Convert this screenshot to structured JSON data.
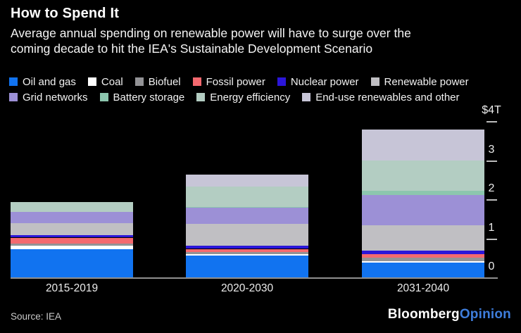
{
  "header": {
    "title": "How to Spend It",
    "subtitle": "Average annual spending on renewable power will have to surge over the\ncoming decade to hit the IEA's Sustainable Development Scenario"
  },
  "chart_data": {
    "type": "bar",
    "variant": "stacked",
    "title": "How to Spend It",
    "unit": "trillion USD",
    "categories": [
      "2015-2019",
      "2020-2030",
      "2031-2040"
    ],
    "series": [
      {
        "name": "Oil and gas",
        "color": "#1173f0",
        "values": [
          0.72,
          0.56,
          0.38
        ]
      },
      {
        "name": "Coal",
        "color": "#ffffff",
        "values": [
          0.1,
          0.04,
          0.04
        ]
      },
      {
        "name": "Biofuel",
        "color": "#939396",
        "values": [
          0.04,
          0.05,
          0.08
        ]
      },
      {
        "name": "Fossil power",
        "color": "#f4696f",
        "values": [
          0.16,
          0.08,
          0.09
        ]
      },
      {
        "name": "Nuclear power",
        "color": "#2b16d9",
        "values": [
          0.06,
          0.08,
          0.09
        ]
      },
      {
        "name": "Renewable power",
        "color": "#c0bfc3",
        "values": [
          0.31,
          0.56,
          0.65
        ]
      },
      {
        "name": "Grid networks",
        "color": "#9c90d6",
        "values": [
          0.29,
          0.42,
          0.78
        ]
      },
      {
        "name": "Battery storage",
        "color": "#8cc6ae",
        "values": [
          0.0,
          0.02,
          0.11
        ]
      },
      {
        "name": "Energy efficiency",
        "color": "#b3cdc2",
        "values": [
          0.25,
          0.52,
          0.78
        ]
      },
      {
        "name": "End-use renewables and other",
        "color": "#c7c5d7",
        "values": [
          0.0,
          0.31,
          0.79
        ]
      }
    ],
    "totals": [
      1.93,
      2.64,
      3.79
    ],
    "ylim": [
      0,
      4
    ],
    "yticks": [
      {
        "label": "$4T",
        "value": 4
      },
      {
        "label": "3",
        "value": 3
      },
      {
        "label": "2",
        "value": 2
      },
      {
        "label": "1",
        "value": 1
      },
      {
        "label": "0",
        "value": 0
      }
    ],
    "legend_position": "top",
    "legend_split": 6,
    "grid": false,
    "background": "#000000"
  },
  "footer": {
    "source": "Source: IEA",
    "logo_primary": "Bloomberg",
    "logo_secondary": "Opinion",
    "logo_accent": "#3e7ddb"
  }
}
